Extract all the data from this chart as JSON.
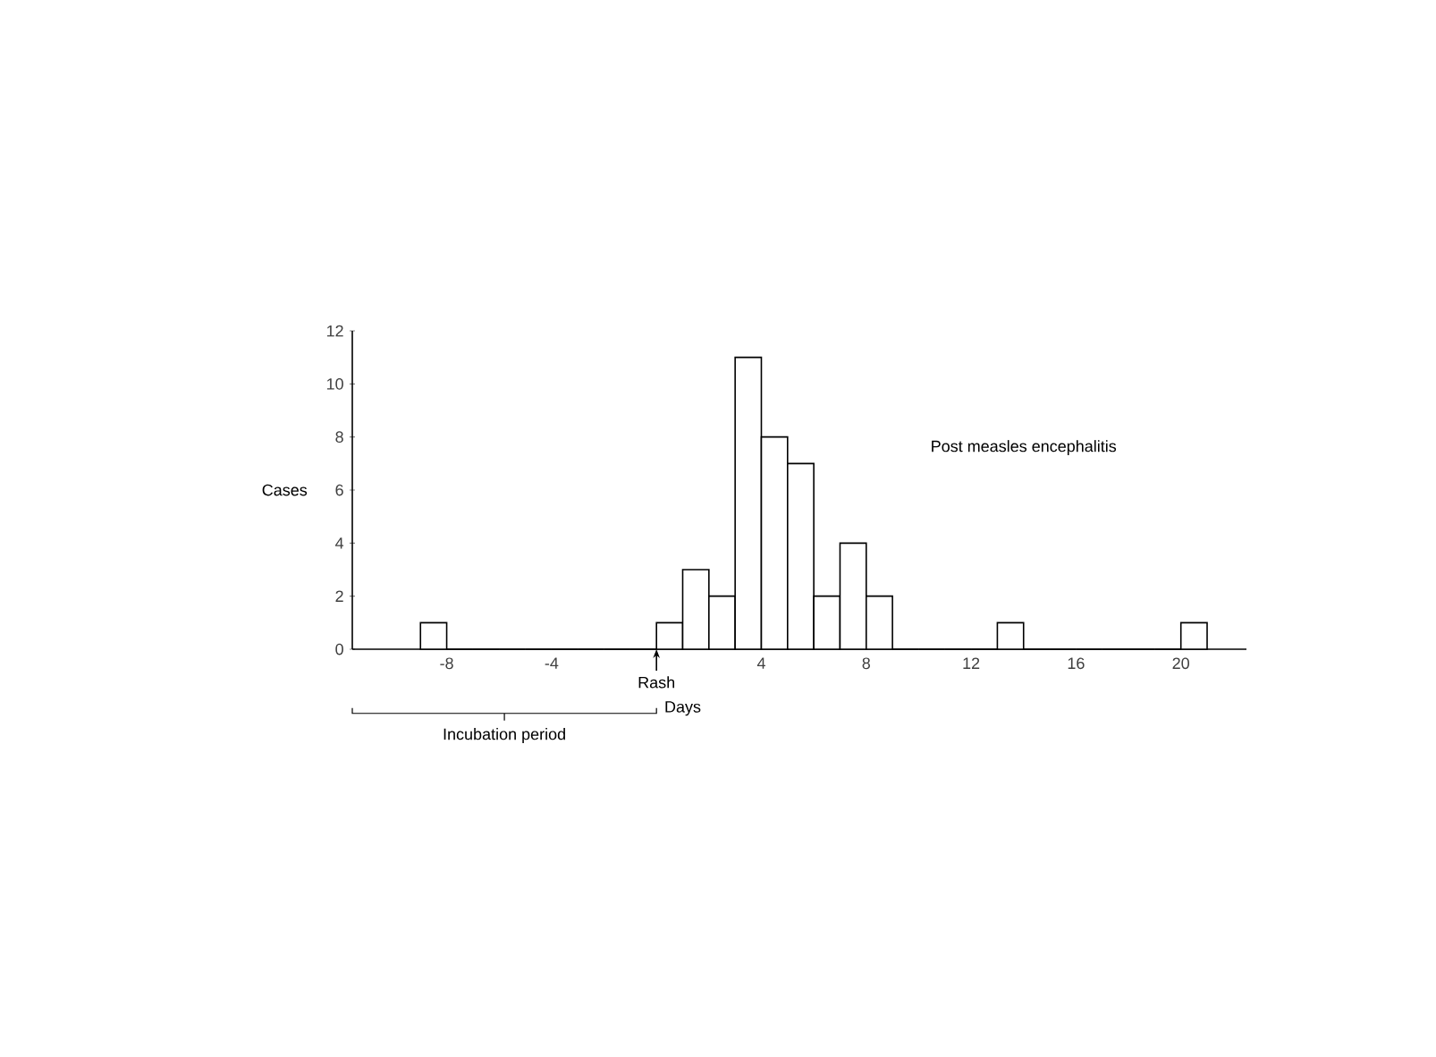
{
  "chart_data": {
    "type": "histogram",
    "xlabel": "Days",
    "ylabel": "Cases",
    "bins": [
      -9,
      -8,
      -7,
      -6,
      -5,
      -4,
      -3,
      -2,
      -1,
      0,
      1,
      2,
      3,
      4,
      5,
      6,
      7,
      8,
      9,
      10,
      11,
      12,
      13,
      14,
      15,
      16,
      17,
      18,
      19,
      20,
      21
    ],
    "values": [
      1,
      0,
      0,
      0,
      0,
      0,
      0,
      0,
      0,
      1,
      3,
      2,
      11,
      8,
      7,
      2,
      4,
      2,
      0,
      0,
      0,
      0,
      1,
      0,
      0,
      0,
      0,
      0,
      0,
      1
    ],
    "color": "#000000",
    "xlim": [
      -11.6,
      22.5
    ],
    "xticks": [
      -8,
      -4,
      4,
      8,
      12,
      16,
      20
    ],
    "ylim": [
      0,
      12
    ],
    "yticks": [
      0,
      2,
      4,
      6,
      8,
      10,
      12
    ],
    "annotations": [
      "Post measles encephalitis",
      "Rash",
      "Incubation period"
    ]
  }
}
